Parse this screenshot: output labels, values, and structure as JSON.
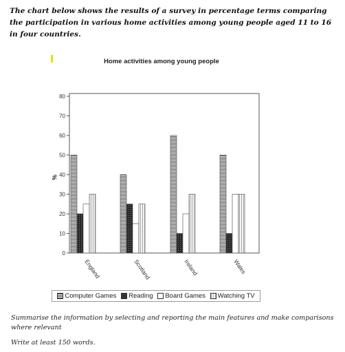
{
  "intro_text": "The chart below shows the results of a survey in percentage terms comparing the participation in various home activities among young people aged 11 to 16 in four countries.",
  "task_text": "Summarise the information by selecting and reporting the main features and make comparisons where relevant",
  "word_count_text": "Write at least 150 words.",
  "chart_data": {
    "type": "bar",
    "title": "Home activities among young people",
    "xlabel": "",
    "ylabel": "%",
    "ylim": [
      0,
      80
    ],
    "yticks": [
      "0",
      "10",
      "20",
      "30",
      "40",
      "50",
      "60",
      "70",
      "80"
    ],
    "categories": [
      "England",
      "Scotland",
      "Ireland",
      "Wales"
    ],
    "series": [
      {
        "name": "Computer Games",
        "values": [
          50,
          40,
          60,
          50
        ]
      },
      {
        "name": "Reading",
        "values": [
          20,
          25,
          10,
          10
        ]
      },
      {
        "name": "Board Games",
        "values": [
          25,
          15,
          20,
          30
        ]
      },
      {
        "name": "Watching TV",
        "values": [
          30,
          25,
          30,
          30
        ]
      }
    ],
    "legend_position": "bottom",
    "grid": false
  }
}
